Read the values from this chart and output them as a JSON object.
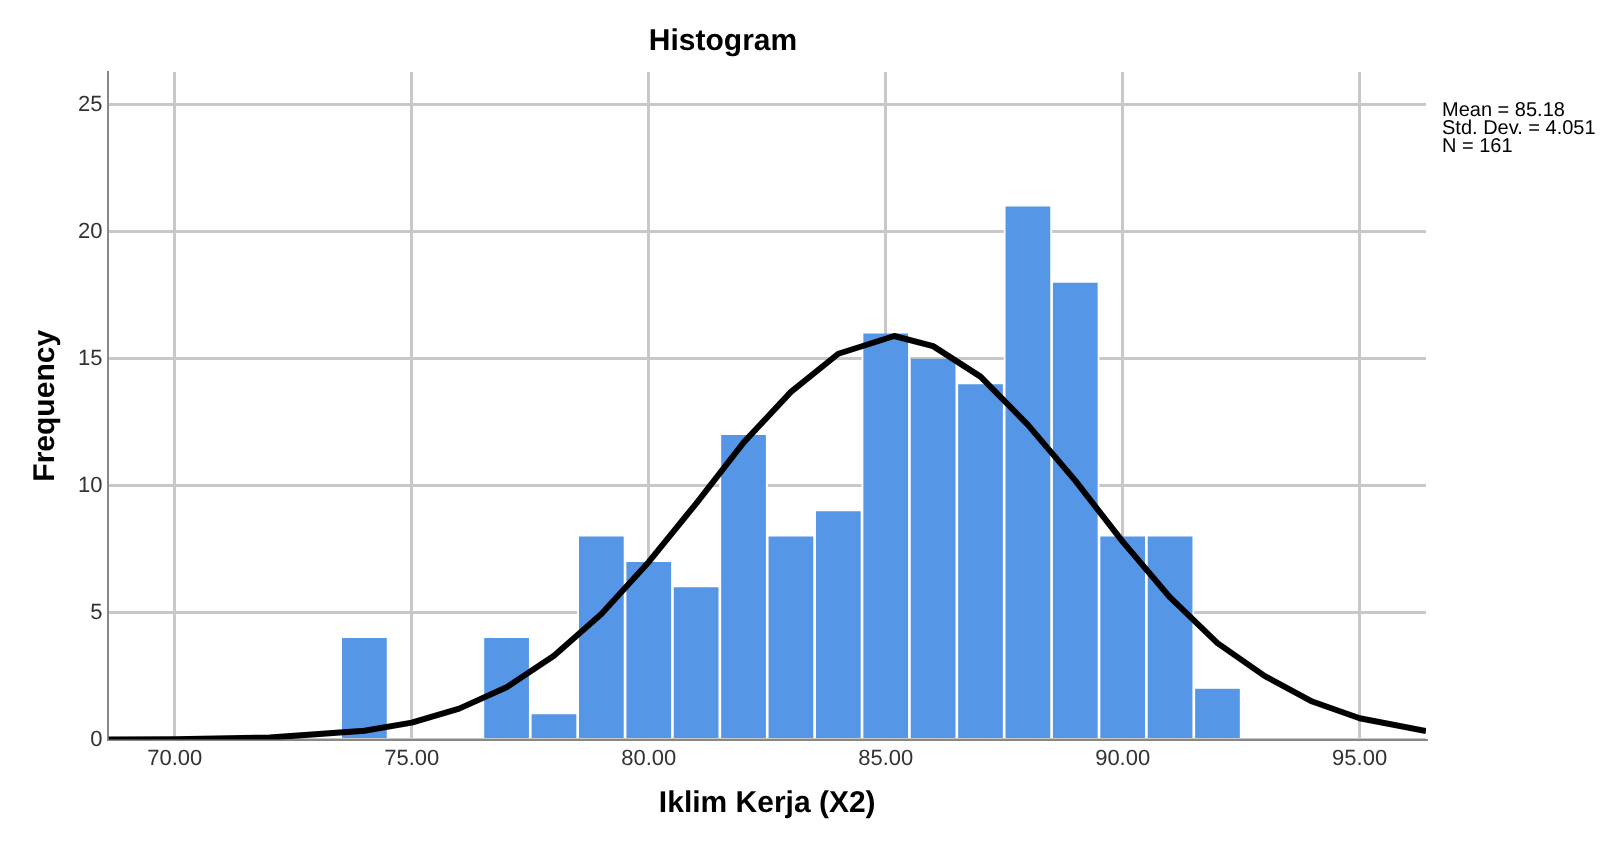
{
  "chart_data": {
    "type": "histogram",
    "title": "Histogram",
    "xlabel": "Iklim Kerja (X2)",
    "ylabel": "Frequency",
    "bins": [
      73.5,
      74.5,
      75.5,
      76.5,
      77.5,
      78.5,
      79.5,
      80.5,
      81.5,
      82.5,
      83.5,
      84.5,
      85.5,
      86.5,
      87.5,
      88.5,
      89.5,
      90.5,
      91.5,
      92.5
    ],
    "values": [
      4,
      0,
      0,
      4,
      1,
      8,
      7,
      6,
      12,
      8,
      9,
      16,
      15,
      14,
      21,
      18,
      8,
      8,
      2
    ],
    "color": "#5596e6",
    "series": [
      {
        "type": "line",
        "color": "#000000",
        "x": [
          68.6,
          70,
          72,
          74,
          75,
          76,
          77,
          78,
          79,
          80,
          81,
          82,
          83,
          84,
          85.18,
          86,
          87,
          88,
          89,
          90,
          91,
          92,
          93,
          94,
          95,
          96.4
        ],
        "values": [
          0,
          0.01,
          0.08,
          0.35,
          0.67,
          1.22,
          2.06,
          3.3,
          4.95,
          7,
          9.3,
          11.7,
          13.7,
          15.2,
          15.9,
          15.5,
          14.3,
          12.4,
          10.2,
          7.8,
          5.6,
          3.8,
          2.5,
          1.5,
          0.84,
          0.34
        ]
      }
    ],
    "xlim": [
      68.6,
      96.4
    ],
    "xticks": [
      {
        "value": 70,
        "label": "70.00"
      },
      {
        "value": 75,
        "label": "75.00"
      },
      {
        "value": 80,
        "label": "80.00"
      },
      {
        "value": 85,
        "label": "85.00"
      },
      {
        "value": 90,
        "label": "90.00"
      },
      {
        "value": 95,
        "label": "95.00"
      }
    ],
    "ylim": [
      0,
      26.3
    ],
    "yticks": [
      0,
      5,
      10,
      15,
      20,
      25
    ],
    "grid": true,
    "legend": false,
    "marker": "none",
    "annotations": [
      "Mean = 85.18",
      "Std. Dev. = 4.051",
      "N = 161"
    ]
  }
}
